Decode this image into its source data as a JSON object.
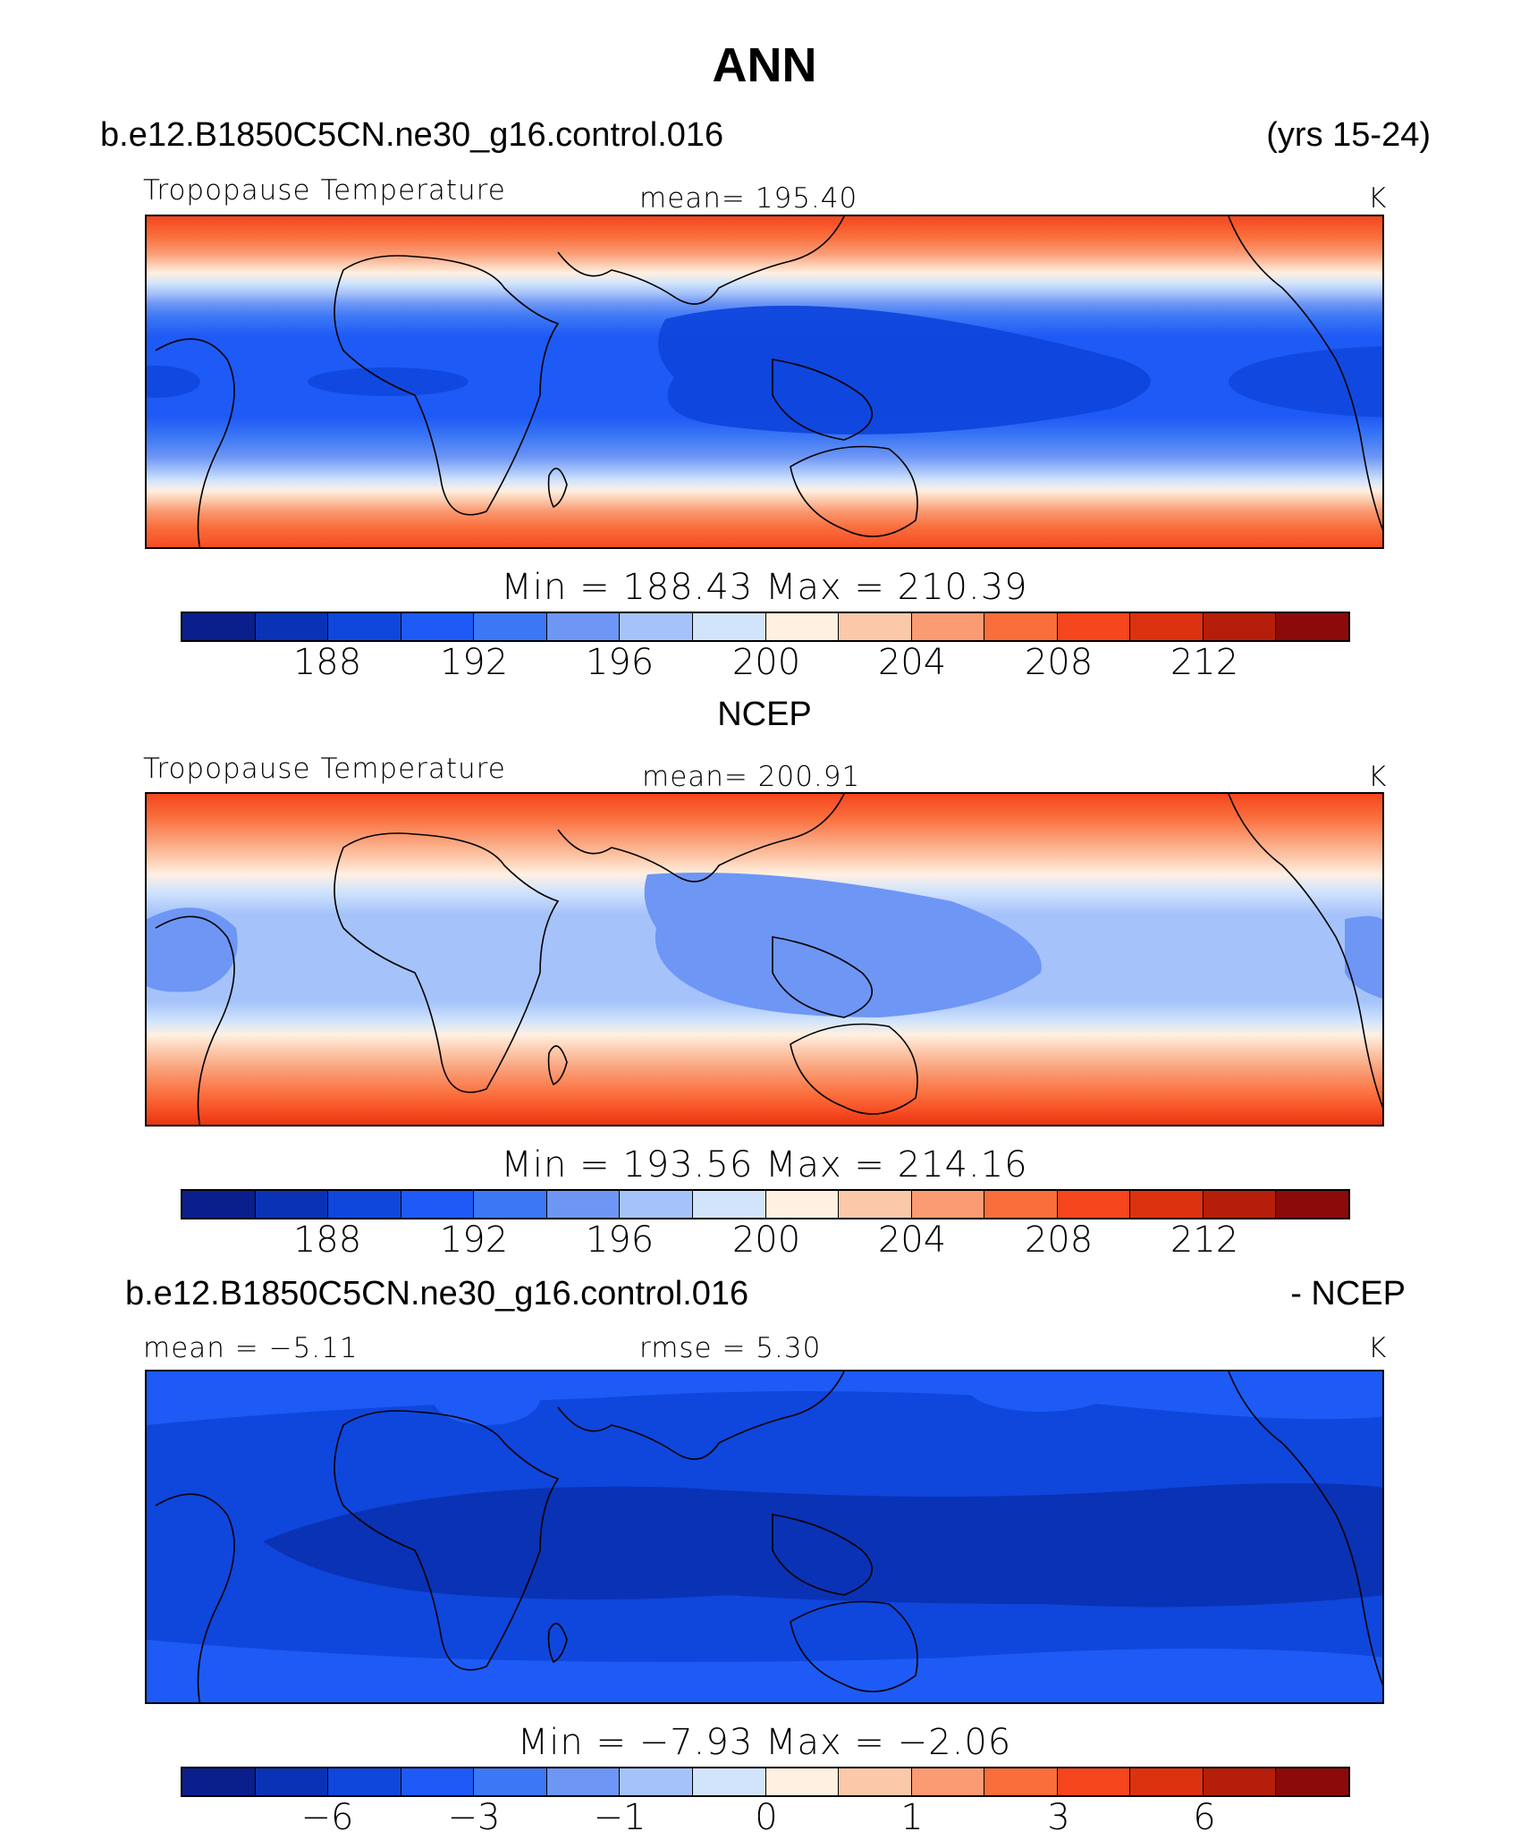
{
  "page_title": "ANN",
  "colorbar_colors": [
    "#0a1e8c",
    "#0a32b4",
    "#0f46dc",
    "#1e5af5",
    "#3c78f5",
    "#6e96f5",
    "#a5c3fa",
    "#d2e4fc",
    "#fff0e1",
    "#fcc8aa",
    "#fa9b73",
    "#fa6e3c",
    "#f5461e",
    "#dc320f",
    "#b41e0a",
    "#8c0a0a"
  ],
  "panels": [
    {
      "header_left": "b.e12.B1850C5CN.ne30_g16.control.016",
      "header_right": "(yrs 15-24)",
      "label_left": "Tropopause  Temperature",
      "label_mid": "mean=  195.40",
      "label_right": "K",
      "minmax": "Min  =  188.43  Max  =  210.39",
      "ticks": [
        "188",
        "192",
        "196",
        "200",
        "204",
        "208",
        "212"
      ],
      "field": "model"
    },
    {
      "header_left": "NCEP",
      "label_left": "Tropopause  Temperature",
      "label_mid": "mean=  200.91",
      "label_right": "K",
      "minmax": "Min  =  193.56  Max  =  214.16",
      "ticks": [
        "188",
        "192",
        "196",
        "200",
        "204",
        "208",
        "212"
      ],
      "field": "ncep"
    },
    {
      "header_left": "b.e12.B1850C5CN.ne30_g16.control.016",
      "header_right": "- NCEP",
      "label_left": "mean  =     −5.11",
      "label_mid": "rmse  =     5.30",
      "label_right": "K",
      "minmax": "Min  =    −7.93  Max  =    −2.06",
      "ticks": [
        "−6",
        "−3",
        "−1",
        "0",
        "1",
        "3",
        "6"
      ],
      "field": "diff"
    }
  ]
}
